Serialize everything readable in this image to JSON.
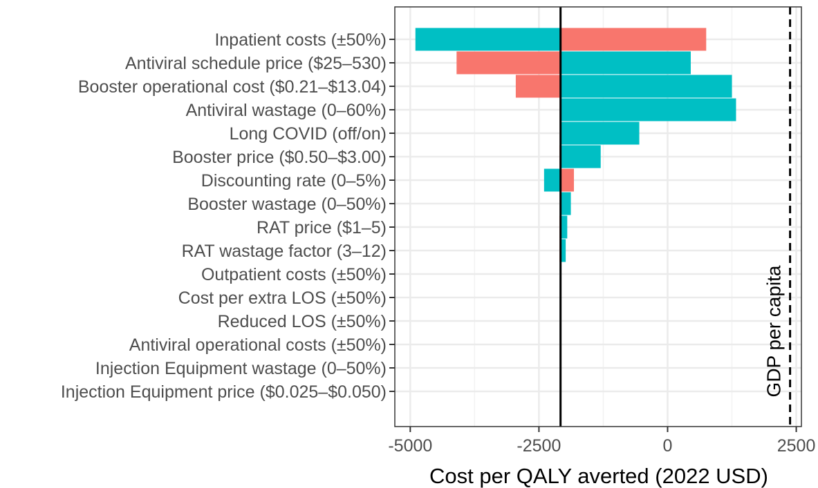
{
  "chart_data": {
    "type": "bar",
    "orientation": "horizontal",
    "title": "",
    "xlabel": "Cost per QALY averted (2022 USD)",
    "ylabel": "",
    "xlim": [
      -5300,
      2600
    ],
    "x_ticks": [
      -5000,
      -2500,
      0,
      2500
    ],
    "x_tick_labels": [
      "-5000",
      "-2500",
      "0",
      "2500"
    ],
    "base_value": -2080,
    "categories": [
      "Inpatient costs (±50%)",
      "Antiviral schedule price ($25–530)",
      "Booster operational cost ($0.21–$13.04)",
      "Antiviral wastage (0–60%)",
      "Long COVID (off/on)",
      "Booster price ($0.50–$3.00)",
      "Discounting rate (0–5%)",
      "Booster wastage (0–50%)",
      "RAT price ($1–5)",
      "RAT wastage factor (3–12)",
      "Outpatient costs (±50%)",
      "Cost per extra LOS (±50%)",
      "Reduced LOS (±50%)",
      "Antiviral operational costs (±50%)",
      "Injection Equipment wastage (0–50%)",
      "Injection Equipment price ($0.025–$0.050)"
    ],
    "series": [
      {
        "color": "#00BFC4",
        "values": [
          -4900,
          450,
          1250,
          1330,
          -550,
          -1300,
          -2400,
          -1880,
          -1950,
          -1980,
          -2080,
          -2080,
          -2080,
          -2080,
          -2080,
          -2080
        ]
      },
      {
        "color": "#F8766D",
        "values": [
          750,
          -4100,
          -2950,
          -2080,
          -2080,
          -2100,
          -1820,
          -2080,
          -2100,
          -2100,
          -2080,
          -2080,
          -2080,
          -2080,
          -2080,
          -2080
        ]
      }
    ],
    "reference_lines": [
      {
        "value": -2080,
        "style": "solid",
        "label": ""
      },
      {
        "value": 2380,
        "style": "dashed",
        "label": "GDP per capita"
      }
    ],
    "grid": true,
    "legend": "none"
  }
}
